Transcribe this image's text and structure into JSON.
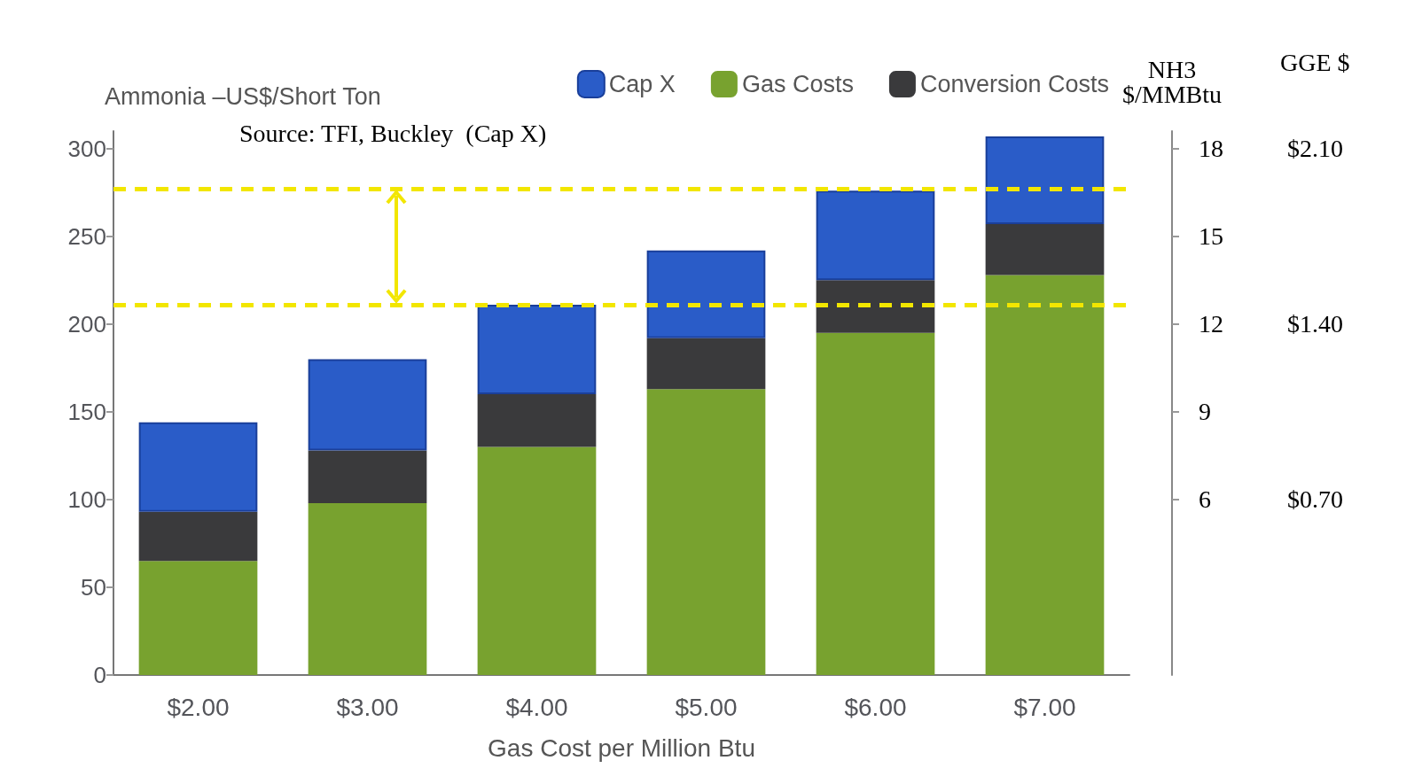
{
  "chart_data": {
    "type": "bar",
    "stacked": true,
    "ylabel": "Ammonia –US$/Short Ton",
    "xlabel": "Gas Cost per Million Btu",
    "y2label": "NH3\n$/MMBtu",
    "y3label": "GGE $",
    "categories": [
      "$2.00",
      "$3.00",
      "$4.00",
      "$5.00",
      "$6.00",
      "$7.00"
    ],
    "series": [
      {
        "name": "Gas Costs",
        "color": "#78a22f",
        "values": [
          65,
          98,
          130,
          163,
          195,
          228
        ]
      },
      {
        "name": "Conversion Costs",
        "color": "#3a3a3c",
        "values": [
          28,
          30,
          30,
          29,
          30,
          29
        ]
      },
      {
        "name": "Cap X",
        "color": "#2a5cc8",
        "values": [
          51,
          52,
          51,
          50,
          51,
          50
        ]
      }
    ],
    "ylim": [
      0,
      310
    ],
    "yticks": [
      0,
      50,
      100,
      150,
      200,
      250,
      300
    ],
    "y2lim": [
      0,
      18.6
    ],
    "y2ticks": [
      6,
      9,
      12,
      15,
      18
    ],
    "y3lim": [
      0,
      2.17
    ],
    "y3ticks": [
      {
        "value": 0.7,
        "label": "$0.70"
      },
      {
        "value": 1.4,
        "label": "$1.40"
      },
      {
        "value": 2.1,
        "label": "$2.10"
      }
    ],
    "ref_lines": [
      {
        "axis": "y",
        "value": 277,
        "label": null,
        "color": "#f2e600",
        "line_style": "dashed"
      },
      {
        "axis": "y",
        "value": 211,
        "label": null,
        "color": "#f2e600",
        "line_style": "dashed"
      }
    ],
    "annotations": [
      "Source: TFI, Buckley  (Cap X)"
    ],
    "legend": "top right",
    "grid": false
  }
}
